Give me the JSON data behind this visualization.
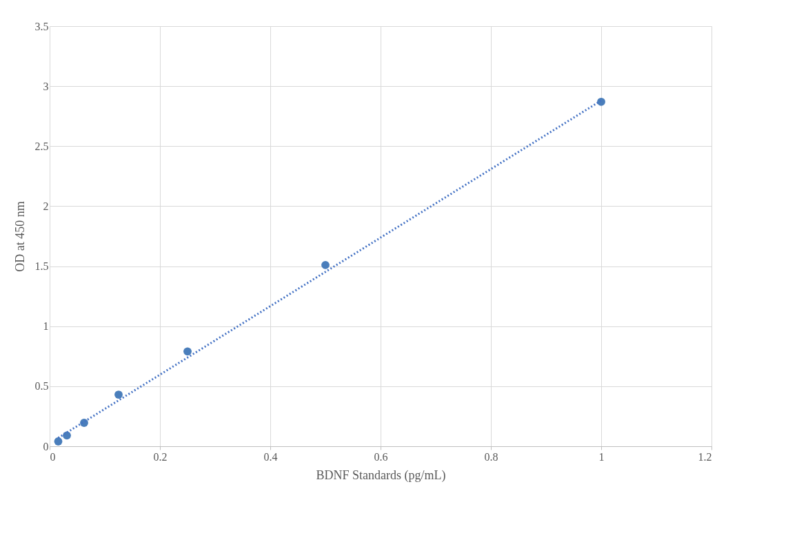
{
  "chart_data": {
    "type": "scatter",
    "xlabel": "BDNF Standards (pg/mL)",
    "ylabel": "OD at 450 nm",
    "xlim": [
      0,
      1.2
    ],
    "xticks": [
      0,
      0.2,
      0.4,
      0.6,
      0.8,
      1,
      1.2
    ],
    "ylim": [
      0,
      3.5
    ],
    "yticks": [
      0,
      0.5,
      1,
      1.5,
      2,
      2.5,
      3,
      3.5
    ],
    "grid": true,
    "series": [
      {
        "color": "#4a7ebb",
        "marker": "circle",
        "x": [
          0.015625,
          0.03125,
          0.0625,
          0.125,
          0.25,
          0.5,
          1
        ],
        "values": [
          0.04,
          0.09,
          0.195,
          0.43,
          0.79,
          1.51,
          2.87
        ]
      },
      {
        "type": "line",
        "color": "#4472c4",
        "marker": "none",
        "line_style": "dotted",
        "x": [
          0.015625,
          1
        ],
        "values": [
          0.07,
          2.88
        ]
      }
    ]
  }
}
